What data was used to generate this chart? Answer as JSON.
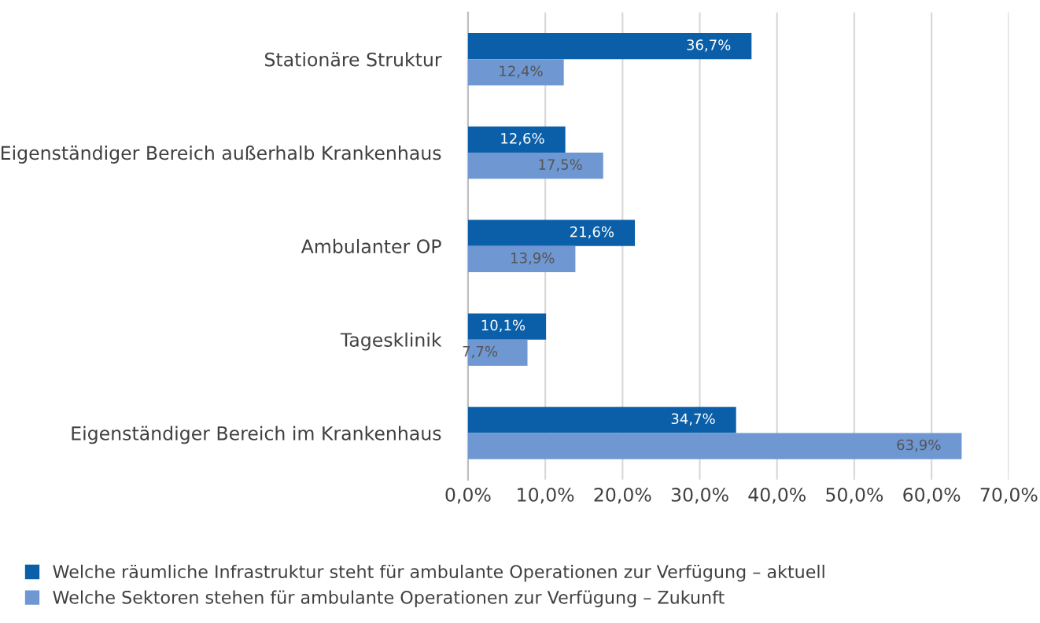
{
  "chart_data": {
    "type": "bar",
    "orientation": "horizontal",
    "categories": [
      "Stationäre Struktur",
      "Eigenständiger Bereich außerhalb Krankenhaus",
      "Ambulanter OP",
      "Tagesklinik",
      "Eigenständiger Bereich im Krankenhaus"
    ],
    "series": [
      {
        "name": "Welche räumliche Infrastruktur steht für ambulante Operationen zur Verfügung – aktuell",
        "color": "#0a5fa8",
        "values": [
          36.7,
          12.6,
          21.6,
          10.1,
          34.7
        ],
        "value_labels": [
          "36,7%",
          "12,6%",
          "21,6%",
          "10,1%",
          "34,7%"
        ]
      },
      {
        "name": "Welche Sektoren stehen für ambulante Operationen zur Verfügung – Zukunft",
        "color": "#6f97d2",
        "values": [
          12.4,
          17.5,
          13.9,
          7.7,
          63.9
        ],
        "value_labels": [
          "12,4%",
          "17,5%",
          "13,9%",
          "7,7%",
          "63,9%"
        ]
      }
    ],
    "xlim": [
      0,
      70
    ],
    "xticks": [
      {
        "value": 0,
        "label": "0,0%"
      },
      {
        "value": 10,
        "label": "10,0%"
      },
      {
        "value": 20,
        "label": "20,0%"
      },
      {
        "value": 30,
        "label": "30,0%"
      },
      {
        "value": 40,
        "label": "40,0%"
      },
      {
        "value": 50,
        "label": "50,0%"
      },
      {
        "value": 60,
        "label": "60,0%"
      },
      {
        "value": 70,
        "label": "70,0%"
      }
    ],
    "grid": "x",
    "legend": "bottom"
  }
}
